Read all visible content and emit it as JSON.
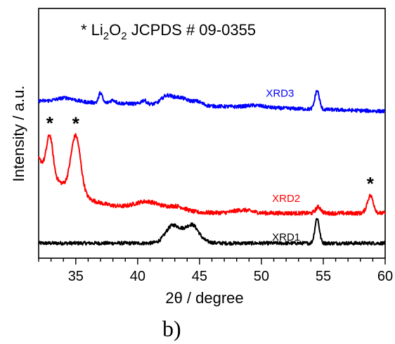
{
  "chart_data": {
    "type": "line",
    "title": "",
    "annotation_line": {
      "prefix": "* Li",
      "sub1": "2",
      "mid": "O",
      "sub2": "2",
      "suffix": " JCPDS # 09-0355"
    },
    "xlabel": "2θ / degree",
    "ylabel": "Intensity / a.u.",
    "xlim": [
      32,
      60
    ],
    "ylim": [
      0,
      1
    ],
    "y_ticks_shown": false,
    "x_ticks": [
      35,
      40,
      45,
      50,
      55,
      60
    ],
    "x_tick_labels": [
      "35",
      "40",
      "45",
      "50",
      "55",
      "60"
    ],
    "grid": false,
    "legend": "none (series labeled inline)",
    "peak_marker": "*",
    "series": [
      {
        "name": "XRD1",
        "color": "#000000",
        "baseline": 0.06,
        "noise": 0.007,
        "peaks": [
          {
            "x": 42.7,
            "h": 0.045,
            "w": 0.7
          },
          {
            "x": 43.8,
            "h": 0.05,
            "w": 1.3
          },
          {
            "x": 44.5,
            "h": 0.035,
            "w": 0.6
          },
          {
            "x": 54.5,
            "h": 0.1,
            "w": 0.25
          }
        ]
      },
      {
        "name": "XRD2",
        "color": "#ff0000",
        "baseline": 0.18,
        "noise": 0.008,
        "decay": {
          "amp": 0.22,
          "x0": 32,
          "tau": 3.0
        },
        "peaks": [
          {
            "x": 32.9,
            "h": 0.15,
            "w": 0.35
          },
          {
            "x": 35.0,
            "h": 0.23,
            "w": 0.55
          },
          {
            "x": 40.8,
            "h": 0.035,
            "w": 1.5
          },
          {
            "x": 43.2,
            "h": 0.02,
            "w": 1.0
          },
          {
            "x": 48.5,
            "h": 0.012,
            "w": 1.0
          },
          {
            "x": 54.6,
            "h": 0.025,
            "w": 0.3
          },
          {
            "x": 58.8,
            "h": 0.07,
            "w": 0.35
          }
        ]
      },
      {
        "name": "XRD3",
        "color": "#0000ff",
        "baseline": 0.63,
        "noise": 0.007,
        "slope": -0.0015,
        "peaks": [
          {
            "x": 34.2,
            "h": 0.015,
            "w": 1.0
          },
          {
            "x": 37.0,
            "h": 0.04,
            "w": 0.2
          },
          {
            "x": 38.0,
            "h": 0.012,
            "w": 0.3
          },
          {
            "x": 40.5,
            "h": 0.015,
            "w": 0.3
          },
          {
            "x": 42.3,
            "h": 0.03,
            "w": 0.6
          },
          {
            "x": 43.4,
            "h": 0.03,
            "w": 0.9
          },
          {
            "x": 44.8,
            "h": 0.015,
            "w": 0.6
          },
          {
            "x": 49.5,
            "h": 0.008,
            "w": 1.0
          },
          {
            "x": 54.5,
            "h": 0.075,
            "w": 0.25
          }
        ]
      }
    ],
    "asterisk_peaks": [
      {
        "x": 32.9,
        "series": "XRD2"
      },
      {
        "x": 35.0,
        "series": "XRD2"
      },
      {
        "x": 58.8,
        "series": "XRD2"
      }
    ],
    "panel_label": "b)"
  }
}
